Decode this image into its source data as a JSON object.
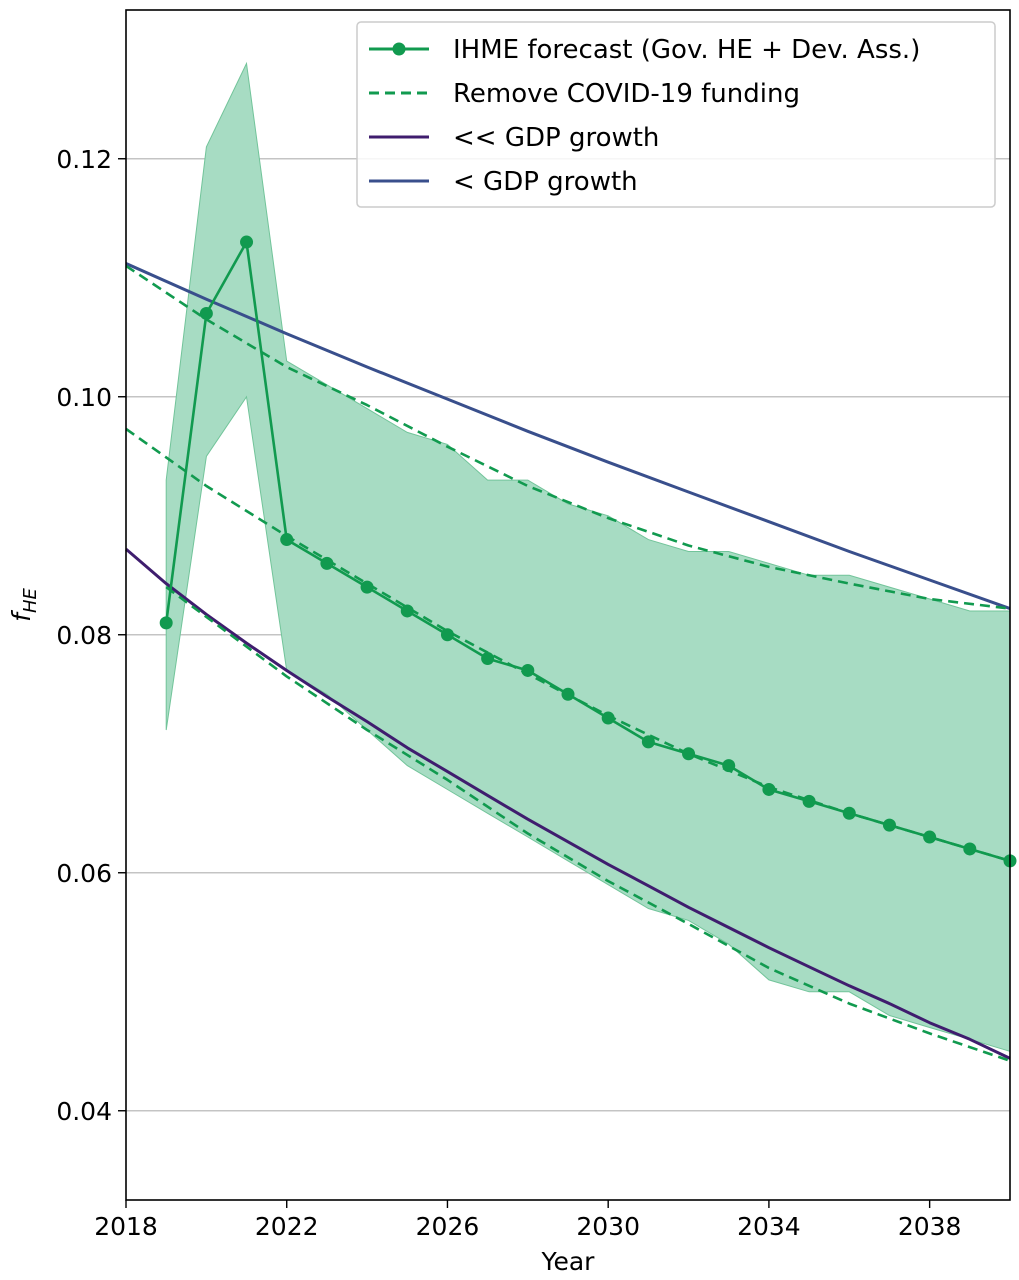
{
  "chart_data": {
    "type": "line",
    "title": "",
    "xlabel": "Year",
    "ylabel_main": "f",
    "ylabel_sub": "HE",
    "xlim": [
      2018,
      2040
    ],
    "ylim": [
      0.0325,
      0.1325
    ],
    "xticks": [
      2018,
      2022,
      2026,
      2030,
      2034,
      2038
    ],
    "xtick_labels": [
      "2018",
      "2022",
      "2026",
      "2030",
      "2034",
      "2038"
    ],
    "yticks": [
      0.04,
      0.06,
      0.08,
      0.1,
      0.12
    ],
    "ytick_labels": [
      "0.04",
      "0.06",
      "0.08",
      "0.10",
      "0.12"
    ],
    "grid": "horizontal",
    "legend_position": "top-right",
    "colors": {
      "ihme": "#119a4f",
      "band": "#a7dcc3",
      "band_edge": "#72c49a",
      "gdp_strong": "#3f1d6e",
      "gdp_weak": "#394f8c",
      "grid": "#c4c4c4"
    },
    "legend": [
      {
        "label": "IHME forecast (Gov. HE + Dev. Ass.)",
        "style": "line-marker",
        "color": "#119a4f"
      },
      {
        "label": "Remove COVID-19 funding",
        "style": "dashed",
        "color": "#119a4f"
      },
      {
        "label": "<< GDP growth",
        "style": "solid",
        "color": "#3f1d6e"
      },
      {
        "label": "< GDP growth",
        "style": "solid",
        "color": "#394f8c"
      }
    ],
    "ihme_forecast": {
      "x": [
        2019,
        2020,
        2021,
        2022,
        2023,
        2024,
        2025,
        2026,
        2027,
        2028,
        2029,
        2030,
        2031,
        2032,
        2033,
        2034,
        2035,
        2036,
        2037,
        2038,
        2039,
        2040
      ],
      "y": [
        0.081,
        0.107,
        0.113,
        0.088,
        0.086,
        0.084,
        0.082,
        0.08,
        0.078,
        0.077,
        0.075,
        0.073,
        0.071,
        0.07,
        0.069,
        0.067,
        0.066,
        0.065,
        0.064,
        0.063,
        0.062,
        0.061
      ]
    },
    "uncertainty_band": {
      "x": [
        2019,
        2020,
        2021,
        2022,
        2023,
        2024,
        2025,
        2026,
        2027,
        2028,
        2029,
        2030,
        2031,
        2032,
        2033,
        2034,
        2035,
        2036,
        2037,
        2038,
        2039,
        2040
      ],
      "upper": [
        0.093,
        0.121,
        0.128,
        0.103,
        0.101,
        0.099,
        0.097,
        0.096,
        0.093,
        0.093,
        0.091,
        0.09,
        0.088,
        0.087,
        0.087,
        0.086,
        0.085,
        0.085,
        0.084,
        0.083,
        0.082,
        0.082
      ],
      "lower": [
        0.072,
        0.095,
        0.1,
        0.077,
        0.075,
        0.072,
        0.069,
        0.067,
        0.065,
        0.063,
        0.061,
        0.059,
        0.057,
        0.056,
        0.054,
        0.051,
        0.05,
        0.05,
        0.048,
        0.047,
        0.046,
        0.045
      ]
    },
    "remove_covid_upper": {
      "x": [
        2018,
        2020,
        2022,
        2024,
        2026,
        2028,
        2030,
        2032,
        2034,
        2036,
        2038,
        2040
      ],
      "y": [
        0.111,
        0.1065,
        0.1025,
        0.0993,
        0.0958,
        0.0925,
        0.0898,
        0.0875,
        0.0857,
        0.0843,
        0.083,
        0.0822
      ]
    },
    "remove_covid_mid": {
      "x": [
        2018,
        2020,
        2022,
        2024,
        2026,
        2028,
        2030,
        2032,
        2034,
        2036,
        2038,
        2040
      ],
      "y": [
        0.0973,
        0.0925,
        0.0883,
        0.0843,
        0.0803,
        0.0767,
        0.0732,
        0.07,
        0.0672,
        0.065,
        0.063,
        0.061
      ]
    },
    "remove_covid_lower": {
      "x": [
        2019,
        2020,
        2022,
        2024,
        2026,
        2028,
        2030,
        2032,
        2034,
        2036,
        2038,
        2040
      ],
      "y": [
        0.084,
        0.0815,
        0.0765,
        0.072,
        0.0678,
        0.0633,
        0.0593,
        0.0557,
        0.052,
        0.049,
        0.0465,
        0.0442
      ]
    },
    "gdp_strong": {
      "x": [
        2018,
        2019,
        2020,
        2021,
        2022,
        2023,
        2024,
        2025,
        2026,
        2027,
        2028,
        2029,
        2030,
        2031,
        2032,
        2033,
        2034,
        2035,
        2036,
        2037,
        2038,
        2039,
        2040
      ],
      "y": [
        0.0872,
        0.0843,
        0.0817,
        0.0793,
        0.077,
        0.0748,
        0.0727,
        0.0705,
        0.0685,
        0.0665,
        0.0645,
        0.0626,
        0.0607,
        0.0589,
        0.0571,
        0.0554,
        0.0537,
        0.0521,
        0.0505,
        0.049,
        0.0474,
        0.046,
        0.0444
      ]
    },
    "gdp_weak": {
      "x": [
        2018,
        2020,
        2022,
        2024,
        2026,
        2028,
        2030,
        2032,
        2034,
        2036,
        2038,
        2040
      ],
      "y": [
        0.1112,
        0.1082,
        0.1053,
        0.1025,
        0.0998,
        0.0971,
        0.0945,
        0.092,
        0.0895,
        0.087,
        0.0846,
        0.0822
      ]
    }
  }
}
